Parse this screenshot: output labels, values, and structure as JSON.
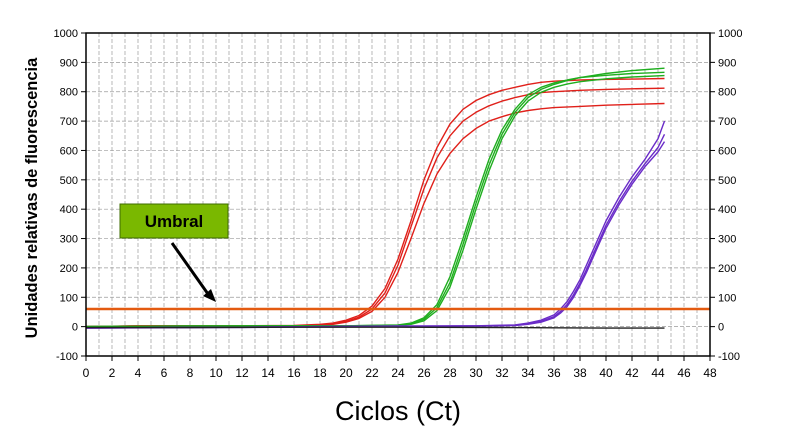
{
  "chart_data": {
    "type": "line",
    "title": "",
    "xlabel": "Ciclos (Ct)",
    "ylabel": "Unidades relativas de fluorescencia",
    "xlim": [
      0,
      48
    ],
    "ylim": [
      -100,
      1000
    ],
    "x_ticks": [
      "0",
      "2",
      "4",
      "6",
      "8",
      "10",
      "12",
      "14",
      "16",
      "18",
      "20",
      "22",
      "24",
      "26",
      "28",
      "30",
      "32",
      "34",
      "36",
      "38",
      "40",
      "42",
      "44",
      "46",
      "48"
    ],
    "y_ticks_left": [
      "-100",
      "0",
      "100",
      "200",
      "300",
      "400",
      "500",
      "600",
      "700",
      "800",
      "900",
      "1000"
    ],
    "y_ticks_right": [
      "-100",
      "0",
      "100",
      "200",
      "300",
      "400",
      "500",
      "600",
      "700",
      "800",
      "900",
      "1000"
    ],
    "grid": true,
    "threshold": {
      "label": "Umbral",
      "value": 60,
      "color": "#e35a10",
      "label_bg": "#7ab800"
    },
    "series": [
      {
        "color": "#e0201a",
        "x": [
          0,
          4,
          8,
          12,
          16,
          18,
          19,
          20,
          21,
          22,
          23,
          24,
          25,
          26,
          27,
          28,
          29,
          30,
          31,
          32,
          33,
          34,
          35,
          36,
          38,
          40,
          42,
          44.5
        ],
        "y": [
          0,
          2,
          3,
          3,
          3,
          6,
          10,
          18,
          32,
          60,
          115,
          210,
          340,
          470,
          575,
          650,
          700,
          730,
          752,
          768,
          780,
          790,
          797,
          800,
          805,
          808,
          810,
          812
        ]
      },
      {
        "color": "#e0201a",
        "x": [
          0,
          4,
          8,
          12,
          16,
          18,
          19,
          20,
          21,
          22,
          23,
          24,
          25,
          26,
          27,
          28,
          29,
          30,
          31,
          32,
          33,
          34,
          35,
          36,
          38,
          40,
          42,
          44.5
        ],
        "y": [
          0,
          3,
          2,
          3,
          4,
          8,
          12,
          22,
          38,
          70,
          130,
          230,
          360,
          500,
          610,
          690,
          740,
          770,
          790,
          805,
          815,
          825,
          832,
          836,
          840,
          842,
          843,
          845
        ]
      },
      {
        "color": "#e0201a",
        "x": [
          0,
          4,
          8,
          12,
          16,
          18,
          19,
          20,
          21,
          22,
          23,
          24,
          25,
          26,
          27,
          28,
          29,
          30,
          31,
          32,
          33,
          34,
          35,
          36,
          38,
          40,
          42,
          44.5
        ],
        "y": [
          0,
          2,
          3,
          2,
          3,
          5,
          8,
          15,
          28,
          52,
          100,
          185,
          300,
          420,
          520,
          590,
          640,
          675,
          700,
          715,
          728,
          736,
          742,
          746,
          750,
          754,
          757,
          760
        ]
      },
      {
        "color": "#1fae1f",
        "x": [
          0,
          8,
          16,
          20,
          24,
          25,
          26,
          27,
          28,
          29,
          30,
          31,
          32,
          33,
          34,
          35,
          36,
          37,
          38,
          40,
          42,
          44.5
        ],
        "y": [
          0,
          2,
          3,
          3,
          6,
          12,
          30,
          75,
          170,
          300,
          440,
          570,
          670,
          740,
          790,
          815,
          830,
          840,
          848,
          856,
          862,
          866
        ]
      },
      {
        "color": "#1fae1f",
        "x": [
          0,
          8,
          16,
          20,
          24,
          25,
          26,
          27,
          28,
          29,
          30,
          31,
          32,
          33,
          34,
          35,
          36,
          37,
          38,
          40,
          42,
          44.5
        ],
        "y": [
          0,
          2,
          2,
          3,
          5,
          10,
          25,
          65,
          150,
          280,
          420,
          550,
          655,
          730,
          780,
          808,
          825,
          838,
          848,
          862,
          872,
          880
        ]
      },
      {
        "color": "#1fae1f",
        "x": [
          0,
          8,
          16,
          20,
          24,
          25,
          26,
          27,
          28,
          29,
          30,
          31,
          32,
          33,
          34,
          35,
          36,
          37,
          38,
          40,
          42,
          44.5
        ],
        "y": [
          0,
          1,
          2,
          2,
          4,
          8,
          20,
          55,
          135,
          260,
          400,
          530,
          640,
          718,
          768,
          798,
          815,
          826,
          834,
          844,
          850,
          855
        ]
      },
      {
        "color": "#6a2cc8",
        "x": [
          0,
          6,
          12,
          18,
          24,
          30,
          33,
          34,
          35,
          36,
          36.5,
          37,
          37.5,
          38,
          38.5,
          39,
          39.5,
          40,
          41,
          42,
          43,
          44,
          44.5
        ],
        "y": [
          -5,
          -3,
          -2,
          0,
          2,
          3,
          6,
          12,
          22,
          40,
          60,
          85,
          120,
          160,
          210,
          260,
          310,
          360,
          440,
          510,
          570,
          640,
          700
        ]
      },
      {
        "color": "#6a2cc8",
        "x": [
          0,
          6,
          12,
          18,
          24,
          30,
          33,
          34,
          35,
          36,
          36.5,
          37,
          37.5,
          38,
          38.5,
          39,
          39.5,
          40,
          41,
          42,
          43,
          44,
          44.5
        ],
        "y": [
          -5,
          -4,
          -2,
          0,
          1,
          2,
          5,
          10,
          18,
          34,
          52,
          75,
          108,
          148,
          195,
          245,
          295,
          345,
          425,
          495,
          555,
          610,
          655
        ]
      },
      {
        "color": "#6a2cc8",
        "x": [
          0,
          6,
          12,
          18,
          24,
          30,
          33,
          34,
          35,
          36,
          36.5,
          37,
          37.5,
          38,
          38.5,
          39,
          39.5,
          40,
          41,
          42,
          43,
          44,
          44.5
        ],
        "y": [
          -5,
          -3,
          -3,
          -1,
          0,
          2,
          4,
          8,
          15,
          30,
          46,
          68,
          100,
          140,
          185,
          235,
          285,
          335,
          415,
          485,
          545,
          595,
          630
        ]
      },
      {
        "color": "#222222",
        "x": [
          0,
          8,
          16,
          24,
          32,
          36,
          40,
          44.5
        ],
        "y": [
          -3,
          -3,
          -2,
          -2,
          -3,
          -4,
          -5,
          -5
        ]
      }
    ]
  }
}
